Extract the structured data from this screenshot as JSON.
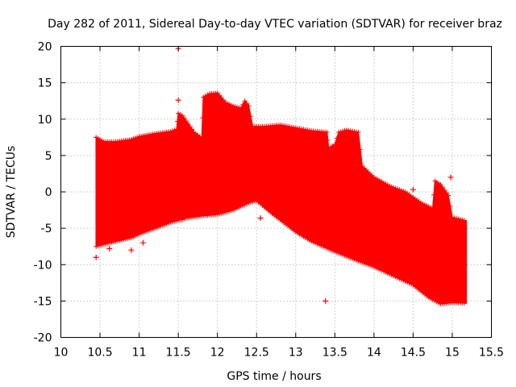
{
  "chart_data": {
    "type": "scatter",
    "title": "Day 282 of 2011, Sidereal Day-to-day VTEC variation (SDTVAR) for receiver braz",
    "xlabel": "GPS time / hours",
    "ylabel": "SDTVAR / TECUs",
    "xlim": [
      10,
      15.5
    ],
    "ylim": [
      -20,
      20
    ],
    "xticks": [
      "10",
      "10.5",
      "11",
      "11.5",
      "12",
      "12.5",
      "13",
      "13.5",
      "14",
      "14.5",
      "15",
      "15.5"
    ],
    "yticks": [
      "20",
      "15",
      "10",
      "5",
      "0",
      "-5",
      "-10",
      "-15",
      "-20"
    ],
    "grid": true,
    "marker": "+",
    "color": "#ff0000",
    "series": [
      {
        "name": "SDTVAR",
        "upper_envelope": [
          [
            10.45,
            7.5
          ],
          [
            10.55,
            6.9
          ],
          [
            10.7,
            6.9
          ],
          [
            10.9,
            7.2
          ],
          [
            11.0,
            7.6
          ],
          [
            11.2,
            8.0
          ],
          [
            11.4,
            8.3
          ],
          [
            11.48,
            8.6
          ],
          [
            11.5,
            10.8
          ],
          [
            11.55,
            10.5
          ],
          [
            11.7,
            8.2
          ],
          [
            11.8,
            7.4
          ],
          [
            11.82,
            13.0
          ],
          [
            11.9,
            13.5
          ],
          [
            12.0,
            13.6
          ],
          [
            12.1,
            12.3
          ],
          [
            12.2,
            11.8
          ],
          [
            12.3,
            11.5
          ],
          [
            12.35,
            12.5
          ],
          [
            12.4,
            11.8
          ],
          [
            12.45,
            9.0
          ],
          [
            12.6,
            9.0
          ],
          [
            12.8,
            9.2
          ],
          [
            13.0,
            8.8
          ],
          [
            13.2,
            8.4
          ],
          [
            13.4,
            8.2
          ],
          [
            13.42,
            6.0
          ],
          [
            13.5,
            6.5
          ],
          [
            13.55,
            8.2
          ],
          [
            13.65,
            8.5
          ],
          [
            13.8,
            8.2
          ],
          [
            13.85,
            3.5
          ],
          [
            14.0,
            2.0
          ],
          [
            14.2,
            0.8
          ],
          [
            14.4,
            0.0
          ],
          [
            14.6,
            -1.5
          ],
          [
            14.75,
            -2.3
          ],
          [
            14.78,
            1.5
          ],
          [
            14.85,
            1.0
          ],
          [
            14.95,
            -0.5
          ],
          [
            15.0,
            -3.5
          ],
          [
            15.18,
            -4.0
          ]
        ],
        "lower_envelope": [
          [
            10.45,
            -7.5
          ],
          [
            10.55,
            -7.2
          ],
          [
            10.7,
            -6.8
          ],
          [
            10.9,
            -6.3
          ],
          [
            11.0,
            -5.8
          ],
          [
            11.2,
            -5.0
          ],
          [
            11.4,
            -4.2
          ],
          [
            11.6,
            -3.6
          ],
          [
            11.8,
            -3.3
          ],
          [
            12.0,
            -3.1
          ],
          [
            12.2,
            -2.5
          ],
          [
            12.4,
            -1.5
          ],
          [
            12.5,
            -1.2
          ],
          [
            12.7,
            -3.0
          ],
          [
            13.0,
            -5.5
          ],
          [
            13.2,
            -6.8
          ],
          [
            13.5,
            -8.2
          ],
          [
            13.8,
            -9.5
          ],
          [
            14.0,
            -10.3
          ],
          [
            14.3,
            -11.8
          ],
          [
            14.5,
            -12.8
          ],
          [
            14.7,
            -14.5
          ],
          [
            14.85,
            -15.4
          ],
          [
            15.0,
            -15.2
          ],
          [
            15.18,
            -15.3
          ]
        ],
        "outliers": [
          [
            11.5,
            19.7
          ],
          [
            11.5,
            12.6
          ],
          [
            10.9,
            -8.0
          ],
          [
            11.05,
            -7.0
          ],
          [
            10.62,
            -7.8
          ],
          [
            12.55,
            -3.6
          ],
          [
            13.38,
            -15.0
          ],
          [
            14.98,
            2.0
          ],
          [
            14.5,
            0.3
          ],
          [
            11.55,
            -3.8
          ],
          [
            10.45,
            -9.0
          ]
        ]
      }
    ]
  }
}
